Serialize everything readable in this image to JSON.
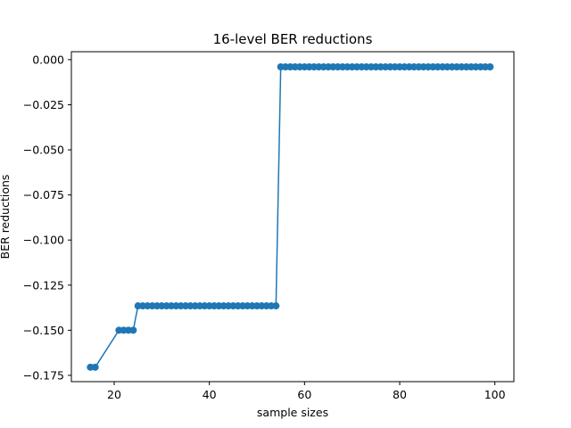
{
  "chart_data": {
    "type": "line",
    "title": "16-level BER reductions",
    "xlabel": "sample sizes",
    "ylabel": "BER reductions",
    "xlim": [
      11,
      104
    ],
    "ylim": [
      -0.1785,
      0.0044
    ],
    "xticks": [
      20,
      40,
      60,
      80,
      100
    ],
    "xtick_labels": [
      "20",
      "40",
      "60",
      "80",
      "100"
    ],
    "yticks": [
      0.0,
      -0.025,
      -0.05,
      -0.075,
      -0.1,
      -0.125,
      -0.15,
      -0.175
    ],
    "ytick_labels": [
      "0.000",
      "−0.025",
      "−0.050",
      "−0.075",
      "−0.100",
      "−0.125",
      "−0.150",
      "−0.175"
    ],
    "grid": false,
    "color": "#1f77b4",
    "series": [
      {
        "name": "",
        "marker": "circle",
        "x": [
          15,
          16,
          21,
          22,
          23,
          24,
          25,
          26,
          27,
          28,
          29,
          30,
          31,
          32,
          33,
          34,
          35,
          36,
          37,
          38,
          39,
          40,
          41,
          42,
          43,
          44,
          45,
          46,
          47,
          48,
          49,
          50,
          51,
          52,
          53,
          54,
          55,
          56,
          57,
          58,
          59,
          60,
          61,
          62,
          63,
          64,
          65,
          66,
          67,
          68,
          69,
          70,
          71,
          72,
          73,
          74,
          75,
          76,
          77,
          78,
          79,
          80,
          81,
          82,
          83,
          84,
          85,
          86,
          87,
          88,
          89,
          90,
          91,
          92,
          93,
          94,
          95,
          96,
          97,
          98,
          99
        ],
        "y": [
          -0.1705,
          -0.1705,
          -0.15,
          -0.15,
          -0.15,
          -0.15,
          -0.1365,
          -0.1365,
          -0.1365,
          -0.1365,
          -0.1365,
          -0.1365,
          -0.1365,
          -0.1365,
          -0.1365,
          -0.1365,
          -0.1365,
          -0.1365,
          -0.1365,
          -0.1365,
          -0.1365,
          -0.1365,
          -0.1365,
          -0.1365,
          -0.1365,
          -0.1365,
          -0.1365,
          -0.1365,
          -0.1365,
          -0.1365,
          -0.1365,
          -0.1365,
          -0.1365,
          -0.1365,
          -0.1365,
          -0.1365,
          -0.004,
          -0.004,
          -0.004,
          -0.004,
          -0.004,
          -0.004,
          -0.004,
          -0.004,
          -0.004,
          -0.004,
          -0.004,
          -0.004,
          -0.004,
          -0.004,
          -0.004,
          -0.004,
          -0.004,
          -0.004,
          -0.004,
          -0.004,
          -0.004,
          -0.004,
          -0.004,
          -0.004,
          -0.004,
          -0.004,
          -0.004,
          -0.004,
          -0.004,
          -0.004,
          -0.004,
          -0.004,
          -0.004,
          -0.004,
          -0.004,
          -0.004,
          -0.004,
          -0.004,
          -0.004,
          -0.004,
          -0.004,
          -0.004,
          -0.004,
          -0.004,
          -0.004
        ]
      }
    ]
  }
}
